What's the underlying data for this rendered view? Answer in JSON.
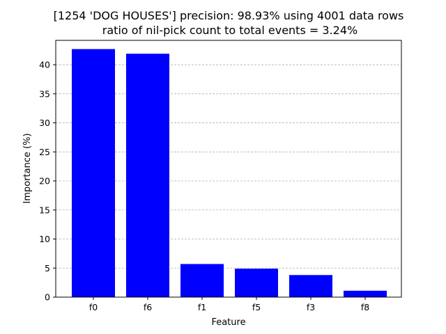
{
  "chart_data": {
    "type": "bar",
    "title_line1": "[1254 'DOG HOUSES'] precision: 98.93% using 4001 data rows",
    "title_line2": "ratio of nil-pick count to total events = 3.24%",
    "xlabel": "Feature",
    "ylabel": "Importance (%)",
    "categories": [
      "f0",
      "f6",
      "f1",
      "f5",
      "f3",
      "f8"
    ],
    "values": [
      42.7,
      41.9,
      5.7,
      4.9,
      3.8,
      1.1
    ],
    "ylim": [
      0,
      44.2
    ],
    "yticks": [
      0,
      5,
      10,
      15,
      20,
      25,
      30,
      35,
      40
    ],
    "grid": "y-dashed",
    "bar_color": "#0000ff",
    "grid_color": "#b0b0b0"
  }
}
